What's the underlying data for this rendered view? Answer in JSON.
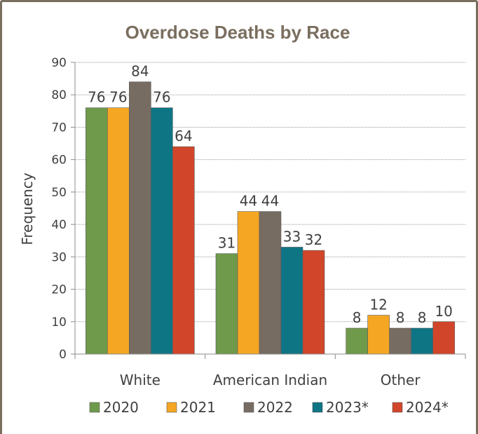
{
  "chart_data": {
    "type": "bar",
    "title": "Overdose Deaths by Race",
    "xlabel": "",
    "ylabel": "Frequency",
    "ylim": [
      0,
      90
    ],
    "yticks": [
      0,
      10,
      20,
      30,
      40,
      50,
      60,
      70,
      80,
      90
    ],
    "grid": true,
    "legend_position": "bottom",
    "categories": [
      "White",
      "American Indian",
      "Other"
    ],
    "series": [
      {
        "name": "2020",
        "color": "#6f9a4b",
        "values": [
          76,
          31,
          8
        ]
      },
      {
        "name": "2021",
        "color": "#f5a623",
        "values": [
          76,
          44,
          12
        ]
      },
      {
        "name": "2022",
        "color": "#776c62",
        "values": [
          84,
          44,
          8
        ]
      },
      {
        "name": "2023*",
        "color": "#0e7585",
        "values": [
          76,
          33,
          8
        ]
      },
      {
        "name": "2024*",
        "color": "#d1462a",
        "values": [
          64,
          32,
          10
        ]
      }
    ],
    "border_color": "#7a6e5f"
  }
}
